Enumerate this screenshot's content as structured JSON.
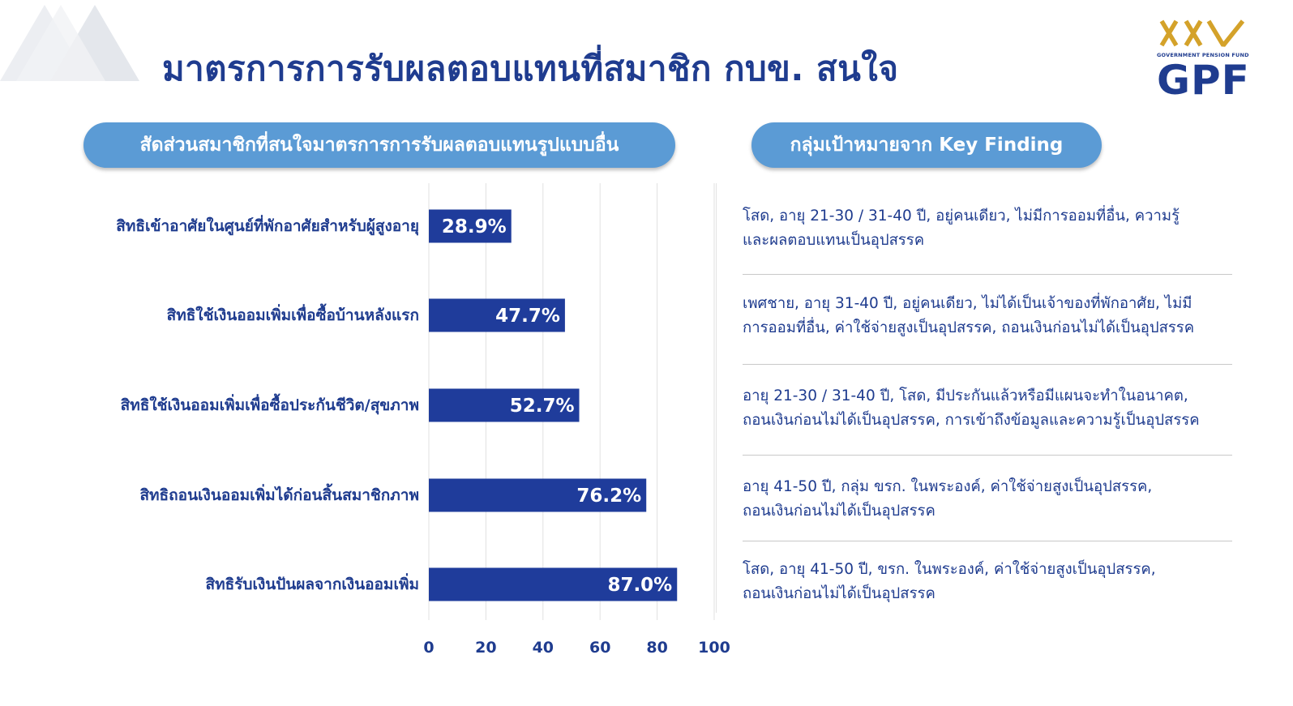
{
  "page": {
    "title": "มาตรการการรับผลตอบแทนที่สมาชิก กบข. สนใจ"
  },
  "logo": {
    "anniversary_mark": "XXV",
    "subtitle": "GOVERNMENT PENSION FUND",
    "name": "GPF"
  },
  "left_panel": {
    "header": "สัดส่วนสมาชิกที่สนใจมาตรการการรับผลตอบแทนรูปแบบอื่น"
  },
  "right_panel": {
    "header": "กลุ่มเป้าหมายจาก Key Finding",
    "findings": [
      "โสด, อายุ 21-30 / 31-40 ปี, อยู่คนเดียว, ไม่มีการออมที่อื่น, ความรู้\nและผลตอบแทนเป็นอุปสรรค",
      "เพศชาย, อายุ 31-40 ปี, อยู่คนเดียว, ไม่ได้เป็นเจ้าของที่พักอาศัย, ไม่มี\nการออมที่อื่น, ค่าใช้จ่ายสูงเป็นอุปสรรค, ถอนเงินก่อนไม่ได้เป็นอุปสรรค",
      "อายุ 21-30 / 31-40 ปี, โสด, มีประกันแล้วหรือมีแผนจะทำในอนาคต,\nถอนเงินก่อนไม่ได้เป็นอุปสรรค, การเข้าถึงข้อมูลและความรู้เป็นอุปสรรค",
      "อายุ 41-50 ปี, กลุ่ม ขรก. ในพระองค์, ค่าใช้จ่ายสูงเป็นอุปสรรค,\nถอนเงินก่อนไม่ได้เป็นอุปสรรค",
      "โสด, อายุ 41-50 ปี, ขรก. ในพระองค์, ค่าใช้จ่ายสูงเป็นอุปสรรค,\nถอนเงินก่อนไม่ได้เป็นอุปสรรค"
    ]
  },
  "colors": {
    "bar": "#1f3c9b",
    "title": "#1f3c8f",
    "pill": "#5b9bd5",
    "gridline": "#e0e0e0",
    "bar_label": "#ffffff"
  },
  "chart_data": {
    "type": "bar",
    "orientation": "horizontal",
    "categories": [
      "สิทธิเข้าอาศัยในศูนย์ที่พักอาศัยสำหรับผู้สูงอายุ",
      "สิทธิใช้เงินออมเพิ่มเพื่อซื้อบ้านหลังแรก",
      "สิทธิใช้เงินออมเพิ่มเพื่อซื้อประกันชีวิต/สุขภาพ",
      "สิทธิถอนเงินออมเพิ่มได้ก่อนสิ้นสมาชิกภาพ",
      "สิทธิรับเงินปันผลจากเงินออมเพิ่ม"
    ],
    "values": [
      28.9,
      47.7,
      52.7,
      76.2,
      87.0
    ],
    "data_labels": [
      "28.9%",
      "47.7%",
      "52.7%",
      "76.2%",
      "87.0%"
    ],
    "xlim": [
      0,
      100
    ],
    "xticks": [
      0,
      20,
      40,
      60,
      80,
      100
    ],
    "grid": true
  }
}
